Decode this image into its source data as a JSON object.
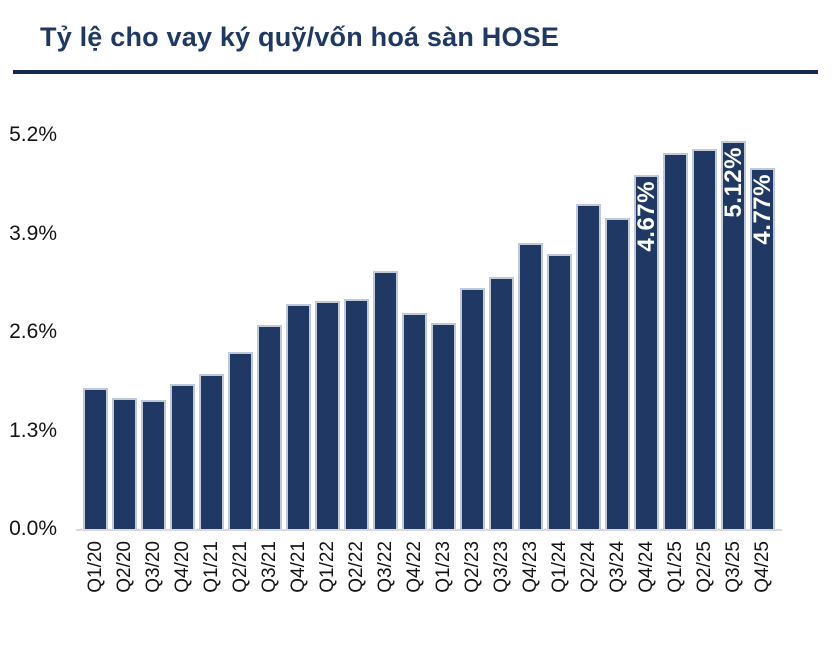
{
  "title": "Tỷ lệ cho vay ký quỹ/vốn hoá sàn HOSE",
  "colors": {
    "navy": "#1f3864",
    "bar_fill": "#1f3864",
    "bar_border": "#c2c9d6",
    "axis_line": "#d9d9d9",
    "tick_text": "#141414",
    "bar_label_text": "#ffffff"
  },
  "chart_data": {
    "type": "bar",
    "title": "Tỷ lệ cho vay ký quỹ/vốn hoá sàn HOSE",
    "xlabel": "",
    "ylabel": "",
    "ylim": [
      0,
      5.2
    ],
    "grid": false,
    "legend": "none",
    "categories": [
      "Q1/20",
      "Q2/20",
      "Q3/20",
      "Q4/20",
      "Q1/21",
      "Q2/21",
      "Q3/21",
      "Q4/21",
      "Q1/22",
      "Q2/22",
      "Q3/22",
      "Q4/22",
      "Q1/23",
      "Q2/23",
      "Q3/23",
      "Q4/23",
      "Q1/24",
      "Q2/24",
      "Q3/24",
      "Q4/24",
      "Q1/25",
      "Q2/25",
      "Q3/25",
      "Q4/25"
    ],
    "values": [
      1.86,
      1.73,
      1.7,
      1.92,
      2.05,
      2.33,
      2.69,
      2.97,
      3.01,
      3.04,
      3.4,
      2.85,
      2.72,
      3.18,
      3.32,
      3.78,
      3.63,
      4.29,
      4.1,
      4.67,
      4.96,
      5.02,
      5.12,
      4.77
    ],
    "bar_labels": [
      "",
      "",
      "",
      "",
      "",
      "",
      "",
      "",
      "",
      "",
      "",
      "",
      "",
      "",
      "",
      "",
      "",
      "",
      "",
      "4.67%",
      "",
      "",
      "5.12%",
      "4.77%"
    ],
    "ytick_labels": [
      "5.2%",
      "3.9%",
      "2.6%",
      "1.3%",
      "0.0%"
    ],
    "ytick_values": [
      5.2,
      3.9,
      2.6,
      1.3,
      0.0
    ]
  }
}
